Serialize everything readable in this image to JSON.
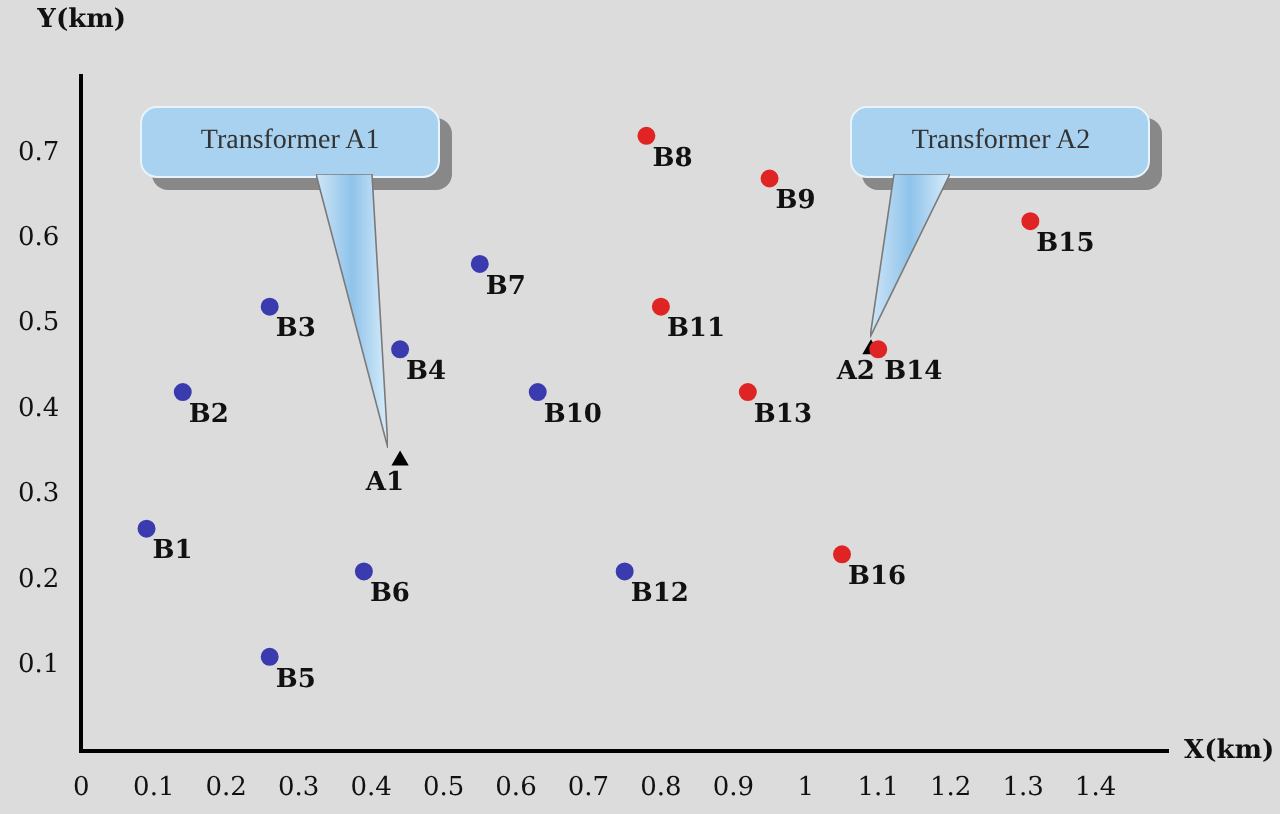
{
  "chart_data": {
    "type": "scatter",
    "xlabel": "X(km)",
    "ylabel": "Y(km)",
    "xlim": [
      0,
      1.5
    ],
    "ylim": [
      0,
      0.79
    ],
    "xticks": [
      0,
      0.1,
      0.2,
      0.3,
      0.4,
      0.5,
      0.6,
      0.7,
      0.8,
      0.9,
      1,
      1.1,
      1.2,
      1.3,
      1.4
    ],
    "yticks": [
      0.1,
      0.2,
      0.3,
      0.4,
      0.5,
      0.6,
      0.7
    ],
    "grid": false,
    "legend": false,
    "series": [
      {
        "color": "#3b3bb0",
        "marker": "circle",
        "x": [
          0.09,
          0.14,
          0.26,
          0.44,
          0.26,
          0.39,
          0.55,
          0.63,
          0.75
        ],
        "values": [
          0.26,
          0.42,
          0.52,
          0.47,
          0.11,
          0.21,
          0.57,
          0.42,
          0.21
        ],
        "value_labels": [
          "B1",
          "B2",
          "B3",
          "B4",
          "B5",
          "B6",
          "B7",
          "B10",
          "B12"
        ]
      },
      {
        "color": "#e02424",
        "marker": "circle",
        "x": [
          0.78,
          0.95,
          0.8,
          0.92,
          1.1,
          1.31,
          1.05
        ],
        "values": [
          0.72,
          0.67,
          0.52,
          0.42,
          0.47,
          0.62,
          0.23
        ],
        "value_labels": [
          "B8",
          "B9",
          "B11",
          "B13",
          "B14",
          "B15",
          "B16"
        ]
      },
      {
        "color": "#000000",
        "marker": "triangle",
        "x": [
          0.44,
          1.09
        ],
        "values": [
          0.34,
          0.47
        ],
        "value_labels": [
          "A1",
          "A2"
        ]
      }
    ],
    "annotations": [
      {
        "text": "Transformer A1",
        "x": 0.44,
        "y": 0.34
      },
      {
        "text": "Transformer A2",
        "x": 1.09,
        "y": 0.47
      }
    ]
  }
}
